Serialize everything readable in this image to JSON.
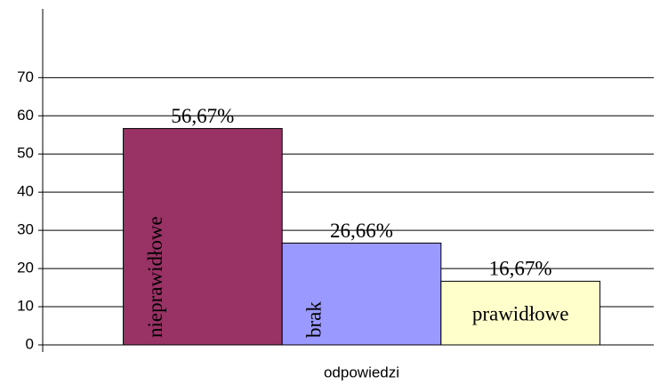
{
  "chart_data": {
    "type": "bar",
    "categories": [
      "odpowiedzi"
    ],
    "series": [
      {
        "name": "nieprawidłowe",
        "color": "#993366",
        "values": [
          56.67
        ],
        "value_labels": [
          "56,67%"
        ]
      },
      {
        "name": "brak",
        "color": "#9999ff",
        "values": [
          26.66
        ],
        "value_labels": [
          "26,66%"
        ]
      },
      {
        "name": "prawidłowe",
        "color": "#ffffcc",
        "values": [
          16.67
        ],
        "value_labels": [
          "16,67%"
        ]
      }
    ],
    "ylim": [
      0,
      88
    ],
    "yticks": [
      0,
      10,
      20,
      30,
      40,
      50,
      60,
      70
    ],
    "grid": true
  }
}
